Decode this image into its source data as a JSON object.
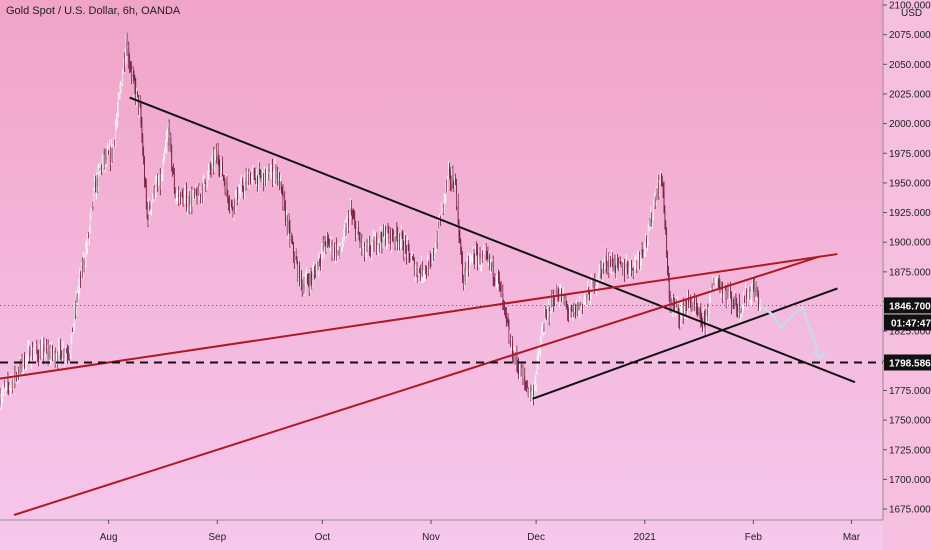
{
  "chart_data": {
    "type": "candlestick",
    "title": "Gold Spot / U.S. Dollar, 6h, OANDA",
    "currency": "USD",
    "ylim": [
      1670,
      2100
    ],
    "y_ticks": [
      2100,
      2075,
      2050,
      2025,
      2000,
      1975,
      1950,
      1925,
      1900,
      1875,
      1850,
      1825,
      1800,
      1775,
      1750,
      1725,
      1700,
      1675
    ],
    "y_tick_labels": [
      "2100.000",
      "2075.000",
      "2050.000",
      "2025.000",
      "2000.000",
      "1975.000",
      "1950.000",
      "1925.000",
      "1900.000",
      "1875.000",
      "1850.000",
      "1825.000",
      "1800.000",
      "1775.000",
      "1750.000",
      "1725.000",
      "1700.000",
      "1675.000"
    ],
    "x_ticks": [
      "Aug",
      "Sep",
      "Oct",
      "Nov",
      "Dec",
      "2021",
      "Feb",
      "Mar"
    ],
    "x_tick_dates": [
      "2020-08-01",
      "2020-09-01",
      "2020-10-01",
      "2020-11-01",
      "2020-12-01",
      "2021-01-01",
      "2021-02-01",
      "2021-03-01"
    ],
    "x_start": "2020-07-01",
    "x_end": "2021-03-10",
    "current_price": 1846.7,
    "current_price_label": "1846.700",
    "countdown_label": "01:47:47",
    "support_level": 1798.586,
    "support_label": "1798.586",
    "price_path": [
      [
        "2020-07-01",
        1770
      ],
      [
        "2020-07-05",
        1785
      ],
      [
        "2020-07-09",
        1805
      ],
      [
        "2020-07-13",
        1808
      ],
      [
        "2020-07-17",
        1805
      ],
      [
        "2020-07-21",
        1810
      ],
      [
        "2020-07-23",
        1855
      ],
      [
        "2020-07-26",
        1900
      ],
      [
        "2020-07-28",
        1945
      ],
      [
        "2020-07-30",
        1965
      ],
      [
        "2020-08-02",
        1975
      ],
      [
        "2020-08-04",
        2020
      ],
      [
        "2020-08-06",
        2070
      ],
      [
        "2020-08-08",
        2035
      ],
      [
        "2020-08-10",
        2010
      ],
      [
        "2020-08-12",
        1920
      ],
      [
        "2020-08-14",
        1945
      ],
      [
        "2020-08-16",
        1950
      ],
      [
        "2020-08-18",
        1995
      ],
      [
        "2020-08-20",
        1940
      ],
      [
        "2020-08-24",
        1935
      ],
      [
        "2020-08-27",
        1940
      ],
      [
        "2020-09-01",
        1975
      ],
      [
        "2020-09-05",
        1930
      ],
      [
        "2020-09-10",
        1955
      ],
      [
        "2020-09-15",
        1955
      ],
      [
        "2020-09-18",
        1960
      ],
      [
        "2020-09-22",
        1900
      ],
      [
        "2020-09-25",
        1865
      ],
      [
        "2020-09-28",
        1870
      ],
      [
        "2020-10-02",
        1900
      ],
      [
        "2020-10-06",
        1890
      ],
      [
        "2020-10-09",
        1925
      ],
      [
        "2020-10-13",
        1890
      ],
      [
        "2020-10-18",
        1905
      ],
      [
        "2020-10-23",
        1905
      ],
      [
        "2020-10-28",
        1875
      ],
      [
        "2020-11-01",
        1880
      ],
      [
        "2020-11-05",
        1940
      ],
      [
        "2020-11-06",
        1955
      ],
      [
        "2020-11-08",
        1950
      ],
      [
        "2020-11-10",
        1870
      ],
      [
        "2020-11-13",
        1888
      ],
      [
        "2020-11-17",
        1885
      ],
      [
        "2020-11-20",
        1870
      ],
      [
        "2020-11-24",
        1810
      ],
      [
        "2020-11-28",
        1780
      ],
      [
        "2020-11-30",
        1770
      ],
      [
        "2020-12-03",
        1830
      ],
      [
        "2020-12-07",
        1860
      ],
      [
        "2020-12-11",
        1838
      ],
      [
        "2020-12-16",
        1855
      ],
      [
        "2020-12-21",
        1885
      ],
      [
        "2020-12-25",
        1878
      ],
      [
        "2020-12-29",
        1880
      ],
      [
        "2021-01-02",
        1905
      ],
      [
        "2021-01-04",
        1940
      ],
      [
        "2021-01-06",
        1955
      ],
      [
        "2021-01-08",
        1850
      ],
      [
        "2021-01-11",
        1840
      ],
      [
        "2021-01-14",
        1850
      ],
      [
        "2021-01-18",
        1830
      ],
      [
        "2021-01-21",
        1870
      ],
      [
        "2021-01-25",
        1855
      ],
      [
        "2021-01-28",
        1845
      ],
      [
        "2021-02-01",
        1862
      ],
      [
        "2021-02-03",
        1846.7
      ]
    ],
    "projection_path": [
      [
        "2021-02-03",
        1846.7
      ],
      [
        "2021-02-06",
        1840
      ],
      [
        "2021-02-09",
        1828
      ],
      [
        "2021-02-12",
        1838
      ],
      [
        "2021-02-15",
        1845
      ],
      [
        "2021-02-18",
        1820
      ],
      [
        "2021-02-20",
        1802
      ]
    ],
    "trendlines": [
      {
        "name": "falling-resistance",
        "color": "#111111",
        "points": [
          [
            "2020-08-07",
            2022
          ],
          [
            "2021-03-02",
            1782
          ]
        ]
      },
      {
        "name": "rising-support-wedge-low",
        "color": "#111111",
        "points": [
          [
            "2020-11-30",
            1768
          ],
          [
            "2021-02-25",
            1861
          ]
        ]
      },
      {
        "name": "long-red-resistance",
        "color": "#b01824",
        "points": [
          [
            "2020-07-01",
            1785
          ],
          [
            "2021-02-25",
            1890
          ]
        ]
      },
      {
        "name": "steep-red-support",
        "color": "#b01824",
        "points": [
          [
            "2020-07-05",
            1670
          ],
          [
            "2021-02-20",
            1888
          ]
        ]
      }
    ]
  }
}
